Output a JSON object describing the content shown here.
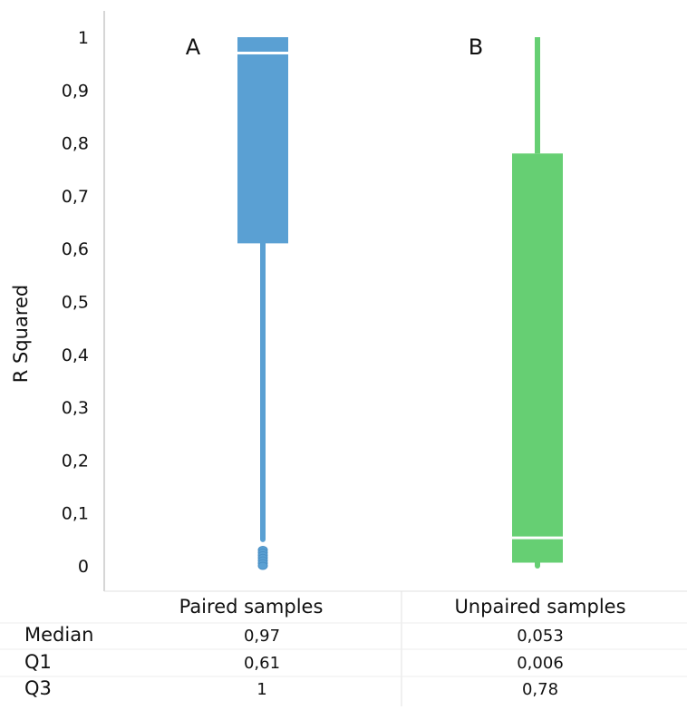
{
  "chart_data": {
    "type": "box",
    "ylabel": "R Squared",
    "ylim": [
      0,
      1
    ],
    "yticks": [
      0,
      0.1,
      0.2,
      0.3,
      0.4,
      0.5,
      0.6,
      0.7,
      0.8,
      0.9,
      1
    ],
    "ytick_labels": [
      "0",
      "0,1",
      "0,2",
      "0,3",
      "0,4",
      "0,5",
      "0,6",
      "0,7",
      "0,8",
      "0,9",
      "1"
    ],
    "grid": false,
    "categories": [
      "Paired samples",
      "Unpaired samples"
    ],
    "panels": [
      "A",
      "B"
    ],
    "boxes": [
      {
        "category": "Paired samples",
        "panel": "A",
        "color": "#5aa0d3",
        "whisker_low": 0.05,
        "q1": 0.61,
        "median": 0.97,
        "q3": 1,
        "whisker_high": 1,
        "outliers": [
          0.03,
          0.025,
          0.02,
          0.015,
          0.01,
          0.005,
          0
        ]
      },
      {
        "category": "Unpaired samples",
        "panel": "B",
        "color": "#66cf73",
        "whisker_low": 0,
        "q1": 0.006,
        "median": 0.053,
        "q3": 0.78,
        "whisker_high": 1,
        "outliers": []
      }
    ],
    "table": {
      "rows": [
        {
          "label": "Median",
          "values": [
            "0,97",
            "0,053"
          ]
        },
        {
          "label": "Q1",
          "values": [
            "0,61",
            "0,006"
          ]
        },
        {
          "label": "Q3",
          "values": [
            "1",
            "0,78"
          ]
        }
      ]
    }
  }
}
